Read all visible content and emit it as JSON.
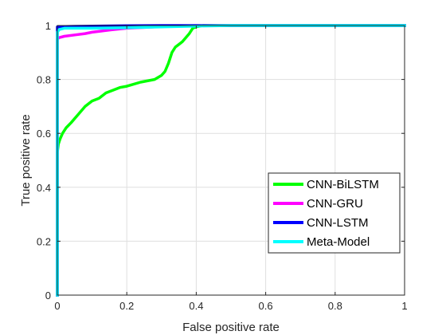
{
  "chart_data": {
    "type": "line",
    "title": "",
    "xlabel": "False positive rate",
    "ylabel": "True positive rate",
    "xlim": [
      0,
      1
    ],
    "ylim": [
      0,
      1
    ],
    "xticks": [
      0,
      0.2,
      0.4,
      0.6,
      0.8,
      1
    ],
    "yticks": [
      0,
      0.2,
      0.4,
      0.6,
      0.8,
      1
    ],
    "xtick_labels": [
      "0",
      "0.2",
      "0.4",
      "0.6",
      "0.8",
      "1"
    ],
    "ytick_labels": [
      "0",
      "0.2",
      "0.4",
      "0.6",
      "0.8",
      "1"
    ],
    "grid": true,
    "legend_position": "lower-right",
    "series": [
      {
        "name": "CNN-BiLSTM",
        "color": "#00ff00",
        "x": [
          0,
          0,
          0.003,
          0.008,
          0.015,
          0.025,
          0.04,
          0.06,
          0.08,
          0.1,
          0.12,
          0.14,
          0.16,
          0.18,
          0.2,
          0.24,
          0.28,
          0.3,
          0.31,
          0.32,
          0.33,
          0.34,
          0.35,
          0.36,
          0.37,
          0.38,
          0.39,
          0.4,
          0.42,
          0.45,
          0.5,
          0.6,
          0.8,
          1
        ],
        "y": [
          0,
          0.53,
          0.56,
          0.58,
          0.6,
          0.62,
          0.64,
          0.67,
          0.7,
          0.72,
          0.73,
          0.75,
          0.76,
          0.77,
          0.775,
          0.79,
          0.8,
          0.815,
          0.83,
          0.86,
          0.9,
          0.92,
          0.93,
          0.94,
          0.955,
          0.97,
          0.99,
          0.995,
          1,
          1,
          1,
          1,
          1,
          1
        ]
      },
      {
        "name": "CNN-GRU",
        "color": "#ff00ff",
        "x": [
          0,
          0,
          0.005,
          0.02,
          0.05,
          0.08,
          0.1,
          0.13,
          0.16,
          0.2,
          0.25,
          0.3,
          0.4,
          0.5,
          1
        ],
        "y": [
          0,
          0.95,
          0.955,
          0.96,
          0.965,
          0.97,
          0.975,
          0.98,
          0.985,
          0.99,
          0.993,
          0.996,
          1,
          1,
          1
        ]
      },
      {
        "name": "CNN-LSTM",
        "color": "#0000ff",
        "x": [
          0,
          0,
          0.01,
          0.05,
          0.1,
          0.2,
          0.3,
          0.4,
          0.5,
          1
        ],
        "y": [
          0,
          0.995,
          0.996,
          0.997,
          0.998,
          0.999,
          1,
          1,
          1,
          1
        ]
      },
      {
        "name": "Meta-Model",
        "color": "#00ffff",
        "x": [
          0,
          0,
          0.005,
          0.02,
          0.1,
          0.2,
          0.3,
          0.4,
          0.5,
          1
        ],
        "y": [
          0,
          0.975,
          0.985,
          0.99,
          0.99,
          0.992,
          0.995,
          0.998,
          1,
          1
        ]
      }
    ]
  }
}
